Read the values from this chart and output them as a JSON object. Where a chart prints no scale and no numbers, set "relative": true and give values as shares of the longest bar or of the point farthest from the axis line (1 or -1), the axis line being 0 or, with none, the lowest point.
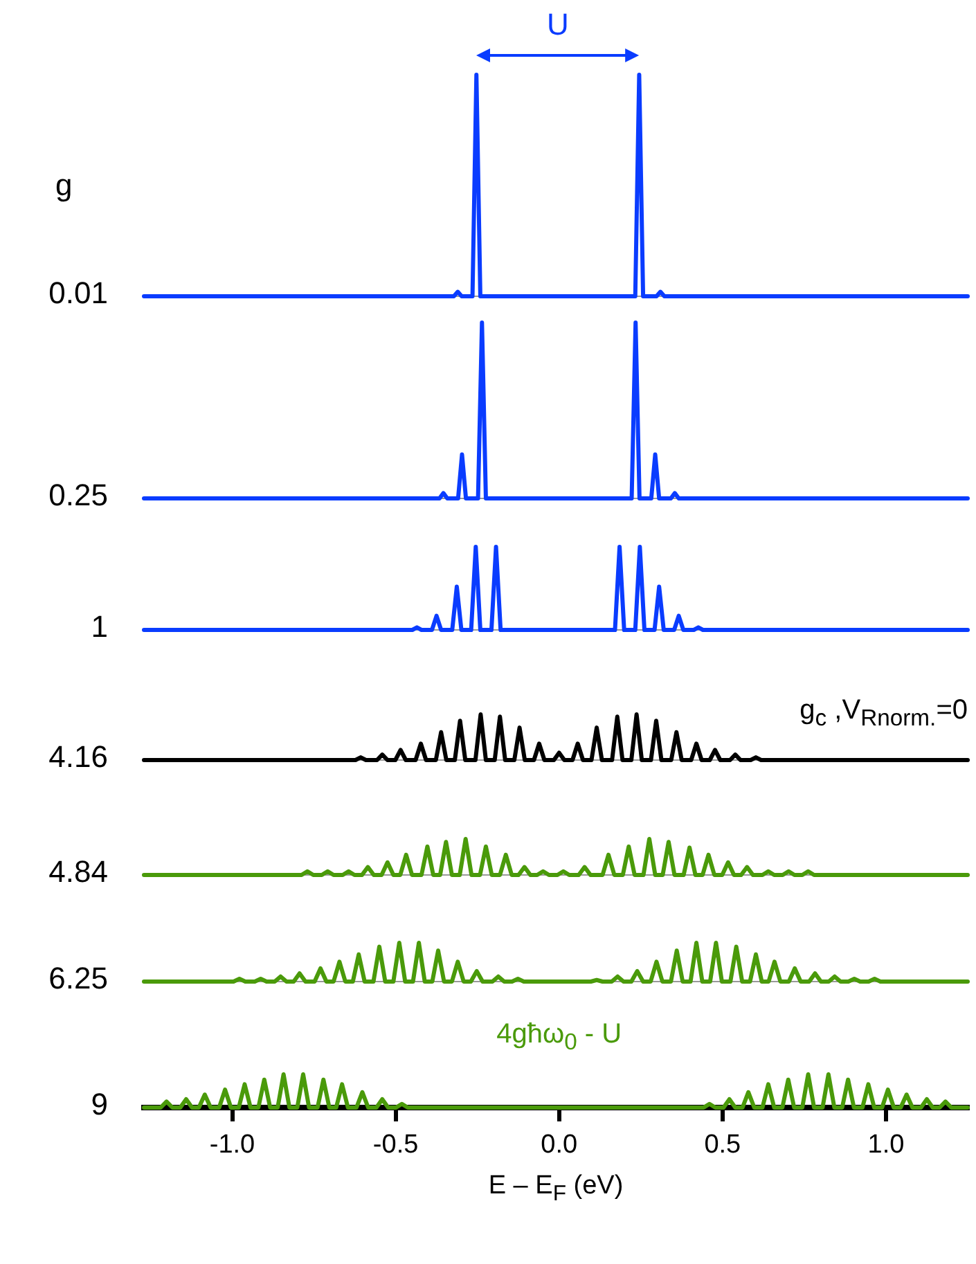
{
  "chart_data": [
    {
      "type": "line",
      "title": "0.01",
      "annotations": [
        "g",
        "U"
      ],
      "relative": true,
      "tick_labels": false,
      "xlim": [
        -1.27,
        1.25
      ],
      "x": [
        -1.27,
        -0.322,
        -0.31,
        -0.298,
        -0.265,
        -0.253,
        -0.241,
        0.233,
        0.245,
        0.257,
        0.298,
        0.31,
        0.322,
        1.25
      ],
      "series": [
        {
          "color": "#0a3cff",
          "values": [
            0,
            0,
            0.02,
            0,
            0,
            1,
            0,
            0,
            1,
            0,
            0,
            0.02,
            0,
            0
          ]
        }
      ]
    },
    {
      "type": "line",
      "title": "0.25",
      "relative": true,
      "tick_labels": false,
      "xlim": [
        -1.27,
        1.25
      ],
      "x": [
        -1.27,
        -0.366,
        -0.354,
        -0.342,
        -0.309,
        -0.297,
        -0.285,
        -0.248,
        -0.236,
        -0.224,
        0.222,
        0.234,
        0.246,
        0.282,
        0.294,
        0.306,
        0.342,
        0.354,
        0.366,
        1.25
      ],
      "series": [
        {
          "color": "#0a3cff",
          "values": [
            0,
            0,
            0.03,
            0,
            0,
            0.25,
            0,
            0,
            1,
            0,
            0,
            1,
            0,
            0,
            0.25,
            0,
            0,
            0.03,
            0,
            0
          ]
        }
      ]
    },
    {
      "type": "line",
      "title": "1",
      "relative": true,
      "tick_labels": false,
      "xlim": [
        -1.27,
        1.25
      ],
      "x": [
        -1.27,
        -0.449,
        -0.435,
        -0.421,
        -0.389,
        -0.375,
        -0.361,
        -0.327,
        -0.313,
        -0.299,
        -0.269,
        -0.255,
        -0.241,
        -0.207,
        -0.193,
        -0.179,
        0.171,
        0.185,
        0.199,
        0.233,
        0.247,
        0.261,
        0.292,
        0.306,
        0.32,
        0.352,
        0.366,
        0.38,
        0.412,
        0.426,
        0.44,
        1.25
      ],
      "series": [
        {
          "color": "#0a3cff",
          "values": [
            0,
            0,
            0.03,
            0,
            0,
            0.17,
            0,
            0,
            0.52,
            0,
            0,
            1,
            0,
            0,
            1,
            0,
            0,
            1,
            0,
            0,
            1,
            0,
            0,
            0.52,
            0,
            0,
            0.17,
            0,
            0,
            0.03,
            0,
            0
          ]
        }
      ]
    },
    {
      "type": "line",
      "title": "4.16",
      "annotations": [
        "g$_{c}$ ,V$_{Rnorm.}$=0"
      ],
      "relative": true,
      "tick_labels": false,
      "xlim": [
        -1.27,
        1.25
      ],
      "x": [
        -1.27,
        -0.623,
        -0.607,
        -0.591,
        -0.557,
        -0.541,
        -0.525,
        -0.501,
        -0.485,
        -0.469,
        -0.439,
        -0.423,
        -0.407,
        -0.377,
        -0.361,
        -0.345,
        -0.319,
        -0.303,
        -0.287,
        -0.256,
        -0.24,
        -0.224,
        -0.197,
        -0.181,
        -0.165,
        -0.137,
        -0.121,
        -0.105,
        -0.077,
        -0.061,
        -0.045,
        -0.016,
        0,
        0.016,
        0.041,
        0.057,
        0.073,
        0.099,
        0.115,
        0.131,
        0.162,
        0.178,
        0.194,
        0.221,
        0.237,
        0.253,
        0.281,
        0.297,
        0.313,
        0.343,
        0.359,
        0.375,
        0.404,
        0.42,
        0.436,
        0.461,
        0.477,
        0.493,
        0.523,
        0.539,
        0.555,
        0.586,
        0.602,
        0.618,
        1.25
      ],
      "series": [
        {
          "color": "#000000",
          "values": [
            0,
            0,
            0.06,
            0,
            0,
            0.12,
            0,
            0,
            0.22,
            0,
            0,
            0.36,
            0,
            0,
            0.61,
            0,
            0,
            0.86,
            0,
            0,
            1,
            0,
            0,
            0.95,
            0,
            0,
            0.71,
            0,
            0,
            0.36,
            0,
            0,
            0.16,
            0,
            0,
            0.36,
            0,
            0,
            0.71,
            0,
            0,
            0.95,
            0,
            0,
            1,
            0,
            0,
            0.86,
            0,
            0,
            0.61,
            0,
            0,
            0.36,
            0,
            0,
            0.22,
            0,
            0,
            0.12,
            0,
            0,
            0.06,
            0,
            0
          ]
        }
      ]
    },
    {
      "type": "line",
      "title": "4.84",
      "relative": true,
      "tick_labels": false,
      "xlim": [
        -1.27,
        1.25
      ],
      "x": [
        -1.27,
        -0.788,
        -0.77,
        -0.752,
        -0.726,
        -0.708,
        -0.69,
        -0.662,
        -0.644,
        -0.626,
        -0.603,
        -0.585,
        -0.567,
        -0.543,
        -0.525,
        -0.507,
        -0.486,
        -0.468,
        -0.45,
        -0.421,
        -0.403,
        -0.385,
        -0.364,
        -0.346,
        -0.328,
        -0.304,
        -0.286,
        -0.268,
        -0.242,
        -0.224,
        -0.206,
        -0.181,
        -0.163,
        -0.145,
        -0.124,
        -0.106,
        -0.088,
        -0.067,
        -0.049,
        -0.031,
        -0.005,
        0.013,
        0.031,
        0.06,
        0.078,
        0.096,
        0.133,
        0.151,
        0.169,
        0.195,
        0.213,
        0.231,
        0.258,
        0.276,
        0.294,
        0.317,
        0.335,
        0.353,
        0.381,
        0.399,
        0.417,
        0.439,
        0.457,
        0.475,
        0.499,
        0.517,
        0.535,
        0.557,
        0.575,
        0.593,
        0.622,
        0.64,
        0.658,
        0.684,
        0.702,
        0.72,
        0.744,
        0.762,
        0.78,
        1.25
      ],
      "series": [
        {
          "color": "#4a9a0a",
          "values": [
            0,
            0,
            0.1,
            0,
            0,
            0.1,
            0,
            0,
            0.1,
            0,
            0,
            0.22,
            0,
            0,
            0.35,
            0,
            0,
            0.56,
            0,
            0,
            0.79,
            0,
            0,
            0.92,
            0,
            0,
            1,
            0,
            0,
            0.79,
            0,
            0,
            0.56,
            0,
            0,
            0.22,
            0,
            0,
            0.1,
            0,
            0,
            0.1,
            0,
            0,
            0.22,
            0,
            0,
            0.56,
            0,
            0,
            0.79,
            0,
            0,
            1,
            0,
            0,
            0.92,
            0,
            0,
            0.76,
            0,
            0,
            0.56,
            0,
            0,
            0.35,
            0,
            0,
            0.22,
            0,
            0,
            0.1,
            0,
            0,
            0.1,
            0,
            0,
            0.1,
            0,
            0
          ]
        }
      ]
    },
    {
      "type": "line",
      "title": "6.25",
      "relative": true,
      "tick_labels": false,
      "xlim": [
        -1.27,
        1.25
      ],
      "x": [
        -1.27,
        -0.996,
        -0.978,
        -0.96,
        -0.931,
        -0.913,
        -0.895,
        -0.87,
        -0.852,
        -0.834,
        -0.812,
        -0.794,
        -0.776,
        -0.748,
        -0.73,
        -0.712,
        -0.69,
        -0.672,
        -0.654,
        -0.631,
        -0.613,
        -0.595,
        -0.568,
        -0.55,
        -0.532,
        -0.507,
        -0.489,
        -0.471,
        -0.447,
        -0.429,
        -0.411,
        -0.388,
        -0.37,
        -0.352,
        -0.328,
        -0.31,
        -0.292,
        -0.27,
        -0.252,
        -0.234,
        -0.204,
        -0.186,
        -0.168,
        -0.144,
        -0.126,
        -0.108,
        0.097,
        0.115,
        0.133,
        0.161,
        0.179,
        0.197,
        0.221,
        0.239,
        0.257,
        0.28,
        0.298,
        0.316,
        0.342,
        0.36,
        0.378,
        0.402,
        0.42,
        0.438,
        0.462,
        0.48,
        0.498,
        0.524,
        0.542,
        0.56,
        0.584,
        0.602,
        0.62,
        0.641,
        0.659,
        0.677,
        0.703,
        0.721,
        0.739,
        0.765,
        0.783,
        0.801,
        0.825,
        0.843,
        0.861,
        0.885,
        0.903,
        0.921,
        0.947,
        0.965,
        0.983,
        1.25
      ],
      "series": [
        {
          "color": "#4a9a0a",
          "values": [
            0,
            0,
            0.07,
            0,
            0,
            0.07,
            0,
            0,
            0.13,
            0,
            0,
            0.21,
            0,
            0,
            0.34,
            0,
            0,
            0.51,
            0,
            0,
            0.7,
            0,
            0,
            0.9,
            0,
            0,
            1,
            0,
            0,
            1,
            0,
            0,
            0.8,
            0,
            0,
            0.51,
            0,
            0,
            0.27,
            0,
            0,
            0.13,
            0,
            0,
            0.07,
            0,
            0,
            0.04,
            0,
            0,
            0.13,
            0,
            0,
            0.27,
            0,
            0,
            0.51,
            0,
            0,
            0.8,
            0,
            0,
            1,
            0,
            0,
            1,
            0,
            0,
            0.9,
            0,
            0,
            0.7,
            0,
            0,
            0.51,
            0,
            0,
            0.34,
            0,
            0,
            0.21,
            0,
            0,
            0.13,
            0,
            0,
            0.07,
            0,
            0,
            0.07,
            0,
            0
          ]
        }
      ]
    },
    {
      "type": "line",
      "title": "9",
      "annotations": [
        "4għω$_{0}$ - U"
      ],
      "relative": true,
      "tick_labels": "x",
      "xlim": [
        -1.27,
        1.25
      ],
      "xlabel": "E – E$_{F}$ (eV)",
      "xticks": [
        {
          "value": -1,
          "label": "-1.0"
        },
        {
          "value": -0.5,
          "label": "-0.5"
        },
        {
          "value": 0,
          "label": "0.0"
        },
        {
          "value": 0.5,
          "label": "0.5"
        },
        {
          "value": 1,
          "label": "1.0"
        }
      ],
      "x": [
        -1.27,
        -1.219,
        -1.201,
        -1.183,
        -1.159,
        -1.141,
        -1.123,
        -1.102,
        -1.084,
        -1.066,
        -1.04,
        -1.022,
        -1.004,
        -0.98,
        -0.962,
        -0.944,
        -0.92,
        -0.902,
        -0.884,
        -0.861,
        -0.843,
        -0.825,
        -0.801,
        -0.783,
        -0.765,
        -0.739,
        -0.721,
        -0.703,
        -0.682,
        -0.664,
        -0.646,
        -0.62,
        -0.602,
        -0.584,
        -0.559,
        -0.541,
        -0.523,
        -0.499,
        -0.481,
        -0.463,
        0.442,
        0.46,
        0.478,
        0.503,
        0.521,
        0.539,
        0.561,
        0.579,
        0.597,
        0.622,
        0.64,
        0.658,
        0.683,
        0.701,
        0.719,
        0.744,
        0.762,
        0.78,
        0.806,
        0.824,
        0.842,
        0.866,
        0.884,
        0.902,
        0.928,
        0.946,
        0.964,
        0.988,
        1.006,
        1.024,
        1.045,
        1.063,
        1.081,
        1.107,
        1.125,
        1.143,
        1.164,
        1.182,
        1.2,
        1.25
      ],
      "series": [
        {
          "color": "#4a9a0a",
          "values": [
            0,
            0,
            0.18,
            0,
            0,
            0.25,
            0,
            0,
            0.39,
            0,
            0,
            0.54,
            0,
            0,
            0.7,
            0,
            0,
            0.84,
            0,
            0,
            1,
            0,
            0,
            1,
            0,
            0,
            0.84,
            0,
            0,
            0.7,
            0,
            0,
            0.46,
            0,
            0,
            0.25,
            0,
            0,
            0.11,
            0,
            0,
            0.11,
            0,
            0,
            0.25,
            0,
            0,
            0.46,
            0,
            0,
            0.7,
            0,
            0,
            0.84,
            0,
            0,
            1,
            0,
            0,
            1,
            0,
            0,
            0.84,
            0,
            0,
            0.7,
            0,
            0,
            0.54,
            0,
            0,
            0.39,
            0,
            0,
            0.25,
            0,
            0,
            0.18,
            0,
            0
          ]
        }
      ]
    }
  ]
}
